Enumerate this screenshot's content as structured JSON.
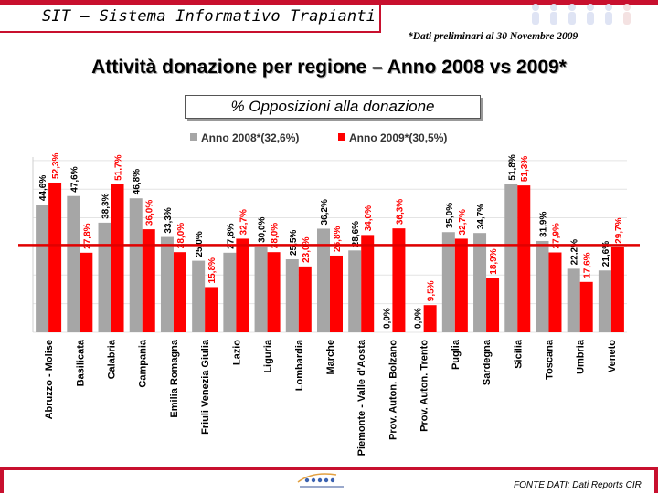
{
  "header": {
    "app_title": "SIT – Sistema Informativo Trapianti",
    "note": "*Dati preliminari al 30 Novembre 2009"
  },
  "main_title": "Attività donazione per regione – Anno 2008 vs 2009*",
  "chart_title": "% Opposizioni alla donazione",
  "footer": {
    "source": "FONTE DATI: Dati Reports CIR"
  },
  "colors": {
    "accent": "#c8102e",
    "series_2008": "#a6a6a6",
    "series_2009": "#ff0000"
  },
  "chart_data": {
    "type": "bar",
    "title": "% Opposizioni alla donazione",
    "categories": [
      "Abruzzo - Molise",
      "Basilicata",
      "Calabria",
      "Campania",
      "Emilia Romagna",
      "Friuli Venezia Giulia",
      "Lazio",
      "Liguria",
      "Lombardia",
      "Marche",
      "Piemonte - Valle d'Aosta",
      "Prov. Auton. Bolzano",
      "Prov. Auton. Trento",
      "Puglia",
      "Sardegna",
      "Sicilia",
      "Toscana",
      "Umbria",
      "Veneto"
    ],
    "series": [
      {
        "name": "Anno 2008*(32,6%)",
        "values": [
          44.6,
          47.6,
          38.3,
          46.8,
          33.3,
          25.0,
          27.8,
          30.0,
          25.5,
          36.2,
          28.6,
          0.0,
          0.0,
          35.0,
          34.7,
          51.8,
          31.9,
          22.2,
          21.6
        ],
        "labels": [
          "44,6%",
          "47,6%",
          "38,3%",
          "46,8%",
          "33,3%",
          "25,0%",
          "27,8%",
          "30,0%",
          "25,5%",
          "36,2%",
          "28,6%",
          "0,0%",
          "0,0%",
          "35,0%",
          "34,7%",
          "51,8%",
          "31,9%",
          "22,2%",
          "21,6%"
        ]
      },
      {
        "name": "Anno 2009*(30,5%)",
        "values": [
          52.3,
          27.8,
          51.7,
          36.0,
          28.0,
          15.8,
          32.7,
          28.0,
          23.0,
          26.8,
          34.0,
          36.3,
          9.5,
          32.7,
          18.9,
          51.3,
          27.9,
          17.6,
          29.7
        ],
        "labels": [
          "52,3%",
          "27,8%",
          "51,7%",
          "36,0%",
          "28,0%",
          "15,8%",
          "32,7%",
          "28,0%",
          "23,0%",
          "26,8%",
          "34,0%",
          "36,3%",
          "9,5%",
          "32,7%",
          "18,9%",
          "51,3%",
          "27,9%",
          "17,6%",
          "29,7%"
        ]
      }
    ],
    "reference_value": 30.5,
    "ylim": [
      0,
      60
    ],
    "grid": true,
    "legend": "top-center"
  }
}
